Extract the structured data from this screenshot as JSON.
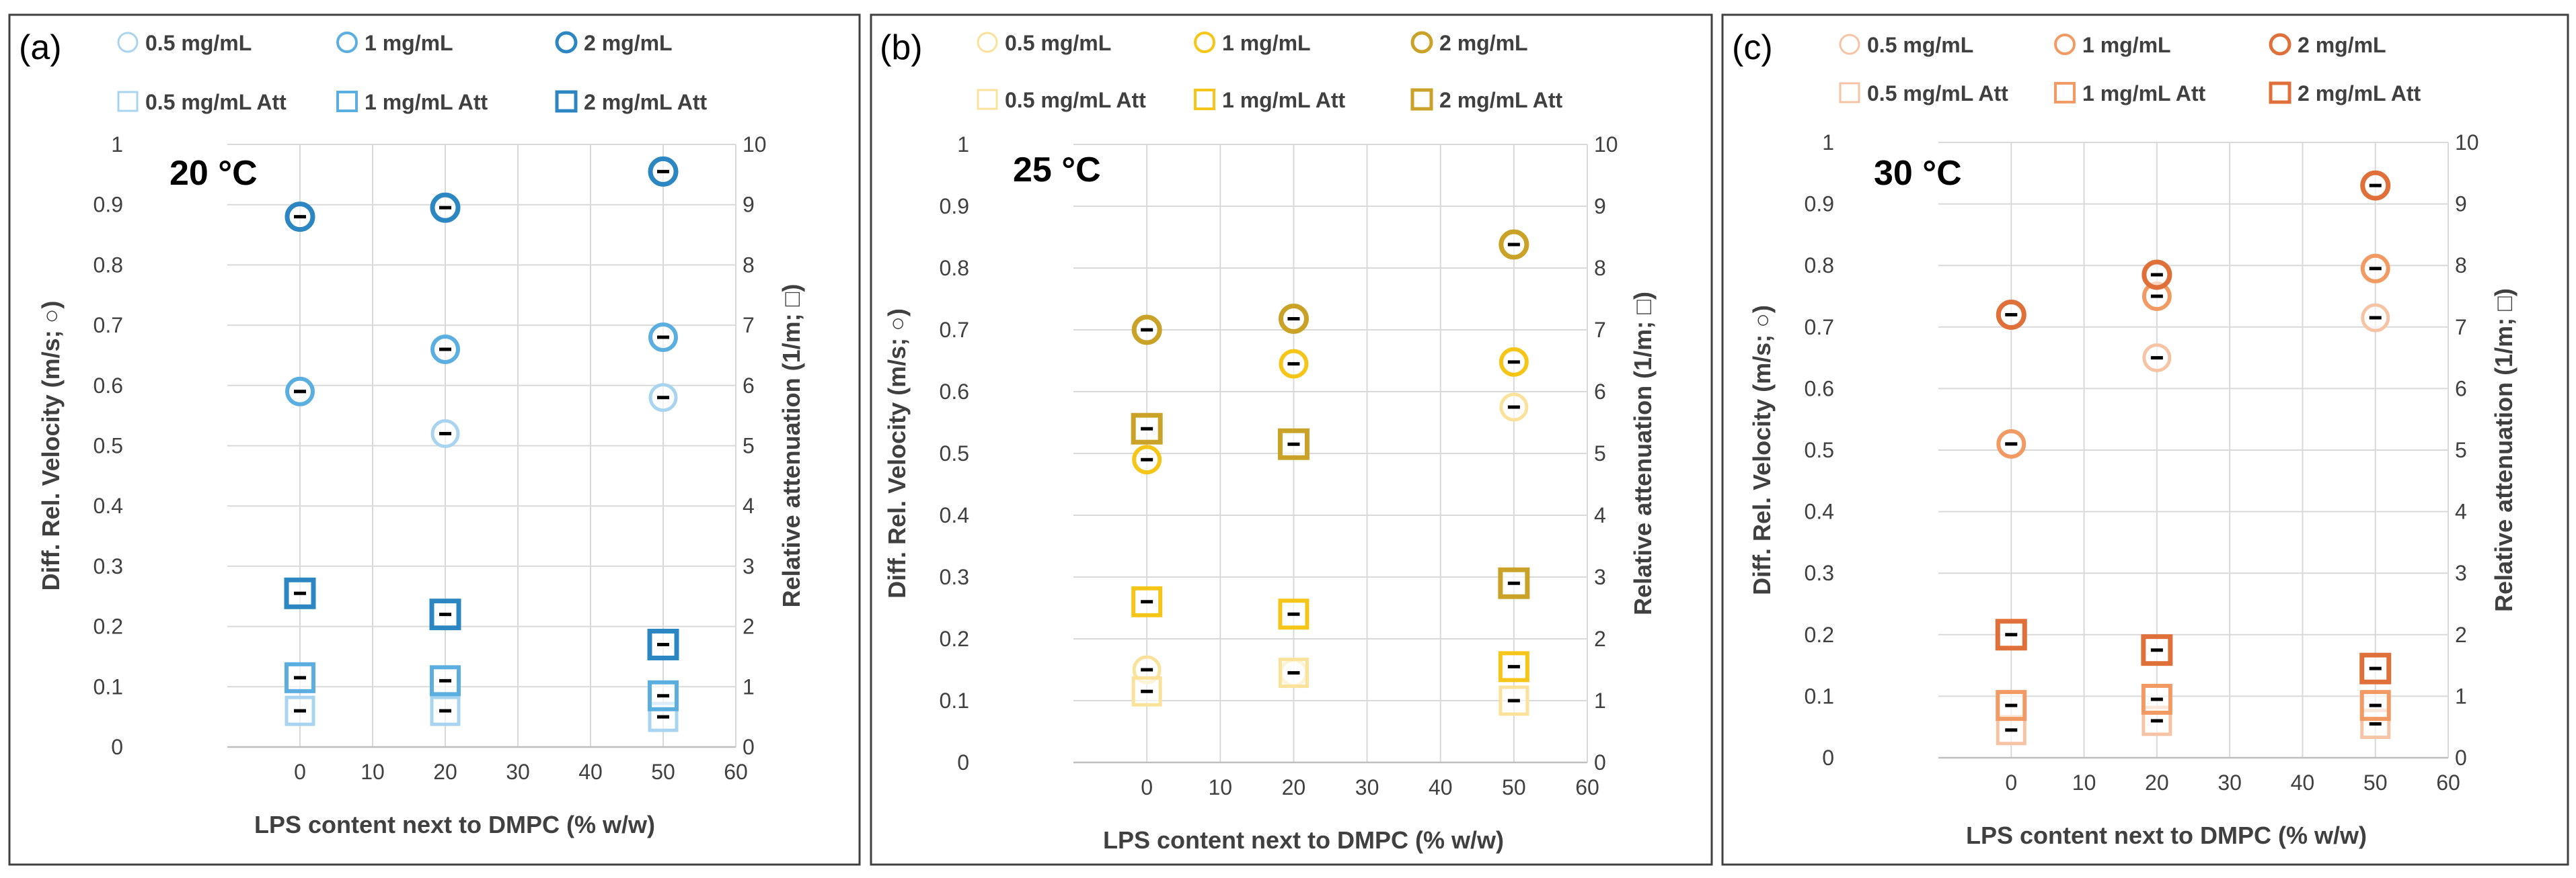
{
  "figure": {
    "xlabel": "LPS content next to DMPC (% w/w)",
    "ylabel_left": "Diff. Rel. Velocity (m/s; ○)",
    "ylabel_right": "Relative attenuation (1/m; □)",
    "x_ticks": [
      0,
      10,
      20,
      30,
      40,
      50,
      60
    ],
    "y_left_ticks": [
      0,
      0.1,
      0.2,
      0.3,
      0.4,
      0.5,
      0.6,
      0.7,
      0.8,
      0.9,
      1
    ],
    "y_right_ticks": [
      0,
      1,
      2,
      3,
      4,
      5,
      6,
      7,
      8,
      9,
      10
    ]
  },
  "chart_data": [
    {
      "type": "scatter",
      "panel_label": "(a)",
      "annotation": "20 °C",
      "xlabel": "LPS content next to DMPC (% w/w)",
      "ylabel": "Diff. Rel. Velocity (m/s; ○)",
      "y2label": "Relative attenuation (1/m; □)",
      "xlim": [
        -10,
        60
      ],
      "ylim": [
        0,
        1
      ],
      "y2lim": [
        0,
        10
      ],
      "grid": true,
      "colors": [
        "#a8d4f0",
        "#5aaee0",
        "#2b86c2"
      ],
      "x": [
        0,
        20,
        50
      ],
      "series": [
        {
          "name": "0.5 mg/mL",
          "marker": "circle",
          "axis": "left",
          "values": [
            0.59,
            0.52,
            0.58
          ]
        },
        {
          "name": "1 mg/mL",
          "marker": "circle",
          "axis": "left",
          "values": [
            0.59,
            0.66,
            0.68
          ]
        },
        {
          "name": "2 mg/mL",
          "marker": "circle",
          "axis": "left",
          "values": [
            0.88,
            0.895,
            0.955
          ]
        },
        {
          "name": "0.5 mg/mL Att",
          "marker": "square",
          "axis": "right",
          "values": [
            0.6,
            0.6,
            0.5
          ]
        },
        {
          "name": "1 mg/mL Att",
          "marker": "square",
          "axis": "right",
          "values": [
            1.15,
            1.1,
            0.85
          ]
        },
        {
          "name": "2 mg/mL Att",
          "marker": "square",
          "axis": "right",
          "values": [
            2.55,
            2.2,
            1.7
          ]
        }
      ]
    },
    {
      "type": "scatter",
      "panel_label": "(b)",
      "annotation": "25 °C",
      "xlabel": "LPS content next to DMPC (% w/w)",
      "ylabel": "Diff. Rel. Velocity (m/s; ○)",
      "y2label": "Relative attenuation (1/m; □)",
      "xlim": [
        -10,
        60
      ],
      "ylim": [
        0,
        1
      ],
      "y2lim": [
        0,
        10
      ],
      "grid": true,
      "colors": [
        "#fbe29a",
        "#f5c518",
        "#c9a227"
      ],
      "x": [
        0,
        20,
        50
      ],
      "series": [
        {
          "name": "0.5 mg/mL",
          "marker": "circle",
          "axis": "left",
          "values": [
            0.15,
            0.145,
            0.575
          ]
        },
        {
          "name": "1 mg/mL",
          "marker": "circle",
          "axis": "left",
          "values": [
            0.49,
            0.645,
            0.648
          ]
        },
        {
          "name": "2 mg/mL",
          "marker": "circle",
          "axis": "left",
          "values": [
            0.7,
            0.718,
            0.838
          ]
        },
        {
          "name": "0.5 mg/mL Att",
          "marker": "square",
          "axis": "right",
          "values": [
            1.15,
            1.45,
            1.0
          ]
        },
        {
          "name": "1 mg/mL Att",
          "marker": "square",
          "axis": "right",
          "values": [
            2.6,
            2.4,
            1.55
          ]
        },
        {
          "name": "2 mg/mL Att",
          "marker": "square",
          "axis": "right",
          "values": [
            5.4,
            5.15,
            2.9
          ]
        }
      ]
    },
    {
      "type": "scatter",
      "panel_label": "(c)",
      "annotation": "30 °C",
      "xlabel": "LPS content next to DMPC (% w/w)",
      "ylabel": "Diff. Rel. Velocity (m/s; ○)",
      "y2label": "Relative attenuation (1/m; □)",
      "xlim": [
        -10,
        60
      ],
      "ylim": [
        0,
        1
      ],
      "y2lim": [
        0,
        10
      ],
      "grid": true,
      "colors": [
        "#f6c4a4",
        "#f29a64",
        "#e0703a"
      ],
      "x": [
        0,
        20,
        50
      ],
      "series": [
        {
          "name": "0.5 mg/mL",
          "marker": "circle",
          "axis": "left",
          "values": [
            0.51,
            0.65,
            0.715
          ]
        },
        {
          "name": "1 mg/mL",
          "marker": "circle",
          "axis": "left",
          "values": [
            0.51,
            0.75,
            0.795
          ]
        },
        {
          "name": "2 mg/mL",
          "marker": "circle",
          "axis": "left",
          "values": [
            0.72,
            0.785,
            0.93
          ]
        },
        {
          "name": "0.5 mg/mL Att",
          "marker": "square",
          "axis": "right",
          "values": [
            0.45,
            0.6,
            0.55
          ]
        },
        {
          "name": "1 mg/mL Att",
          "marker": "square",
          "axis": "right",
          "values": [
            0.85,
            0.95,
            0.85
          ]
        },
        {
          "name": "2 mg/mL Att",
          "marker": "square",
          "axis": "right",
          "values": [
            2.0,
            1.75,
            1.45
          ]
        }
      ]
    }
  ]
}
